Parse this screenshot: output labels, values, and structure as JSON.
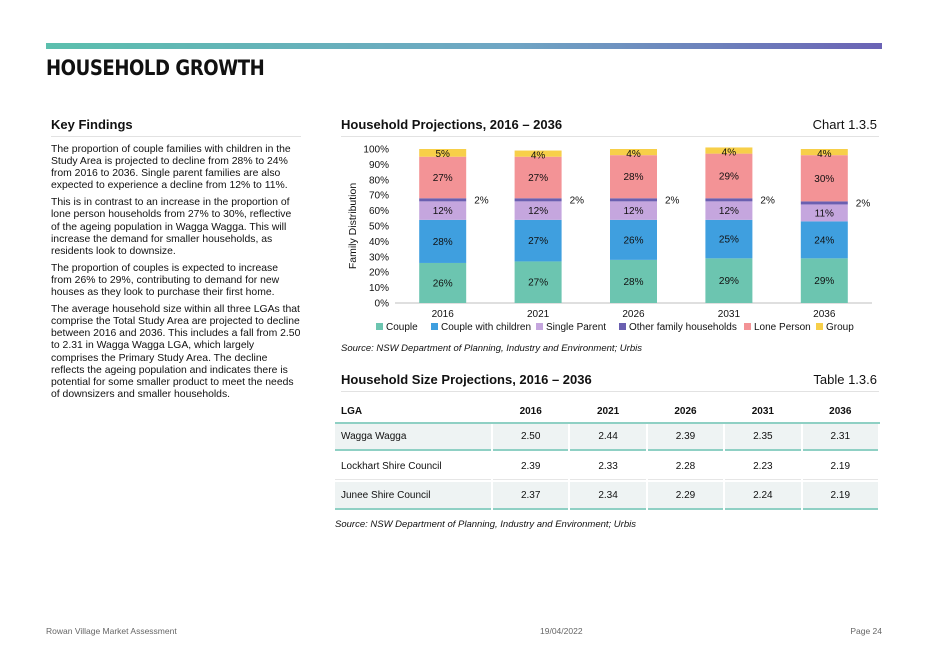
{
  "page": {
    "title": "HOUSEHOLD GROWTH",
    "footer_left": "Rowan Village Market Assessment",
    "footer_center": "19/04/2022",
    "footer_right": "Page 24"
  },
  "key_findings": {
    "heading": "Key Findings",
    "paragraphs": [
      "The proportion of couple families with children in the Study Area is projected to decline from 28% to 24% from 2016 to 2036. Single parent families are also expected to experience a decline from 12% to 11%.",
      "This is in contrast to an increase in the proportion of lone person households from 27% to 30%, reflective of the ageing population in Wagga Wagga. This will increase the demand for smaller households, as residents look to downsize.",
      "The proportion of couples is expected to increase from 26% to 29%, contributing to demand for new houses as they look to purchase their first home.",
      "The average household size within all three LGAs that comprise the Total Study Area are projected to decline between 2016 and 2036. This includes a fall from 2.50 to 2.31 in Wagga Wagga LGA, which largely comprises the Primary Study Area. The decline reflects the ageing population and indicates there is potential for some smaller product to meet the needs of downsizers and smaller households."
    ]
  },
  "chart_section": {
    "heading": "Household Projections, 2016 – 2036",
    "ref": "Chart 1.3.5",
    "source": "Source: NSW Department of Planning, Industry and Environment; Urbis"
  },
  "table_section": {
    "heading": "Household Size Projections, 2016 – 2036",
    "ref": "Table 1.3.6",
    "source": "Source: NSW Department of Planning, Industry and Environment; Urbis",
    "columns": [
      "LGA",
      "2016",
      "2021",
      "2026",
      "2031",
      "2036"
    ],
    "rows": [
      [
        "Wagga Wagga",
        "2.50",
        "2.44",
        "2.39",
        "2.35",
        "2.31"
      ],
      [
        "Lockhart Shire Council",
        "2.39",
        "2.33",
        "2.28",
        "2.23",
        "2.19"
      ],
      [
        "Junee Shire Council",
        "2.37",
        "2.34",
        "2.29",
        "2.24",
        "2.19"
      ]
    ]
  },
  "chart_data": {
    "type": "bar",
    "stacked": true,
    "title": "",
    "xlabel": "",
    "ylabel": "Family Distribution",
    "ylim": [
      0,
      100
    ],
    "yticks": [
      "0%",
      "10%",
      "20%",
      "30%",
      "40%",
      "50%",
      "60%",
      "70%",
      "80%",
      "90%",
      "100%"
    ],
    "categories": [
      "2016",
      "2021",
      "2026",
      "2031",
      "2036"
    ],
    "legend_position": "bottom",
    "grid": false,
    "series": [
      {
        "name": "Couple",
        "color": "#6cc5b0",
        "values": [
          26,
          27,
          28,
          29,
          29
        ],
        "labels": [
          "26%",
          "27%",
          "28%",
          "29%",
          "29%"
        ]
      },
      {
        "name": "Couple with children",
        "color": "#3f9fdf",
        "values": [
          28,
          27,
          26,
          25,
          24
        ],
        "labels": [
          "28%",
          "27%",
          "26%",
          "25%",
          "24%"
        ]
      },
      {
        "name": "Single Parent",
        "color": "#c5a6de",
        "values": [
          12,
          12,
          12,
          12,
          11
        ],
        "labels": [
          "12%",
          "12%",
          "12%",
          "12%",
          "11%"
        ]
      },
      {
        "name": "Other family households",
        "color": "#6a5fb0",
        "values": [
          2,
          2,
          2,
          2,
          2
        ],
        "labels": [
          "2%",
          "2%",
          "2%",
          "2%",
          "2%"
        ]
      },
      {
        "name": "Lone Person",
        "color": "#f39396",
        "values": [
          27,
          27,
          28,
          29,
          30
        ],
        "labels": [
          "27%",
          "27%",
          "28%",
          "29%",
          "30%"
        ]
      },
      {
        "name": "Group",
        "color": "#f7cf49",
        "values": [
          5,
          4,
          4,
          4,
          4
        ],
        "labels": [
          "5%",
          "4%",
          "4%",
          "4%",
          "4%"
        ]
      }
    ]
  }
}
